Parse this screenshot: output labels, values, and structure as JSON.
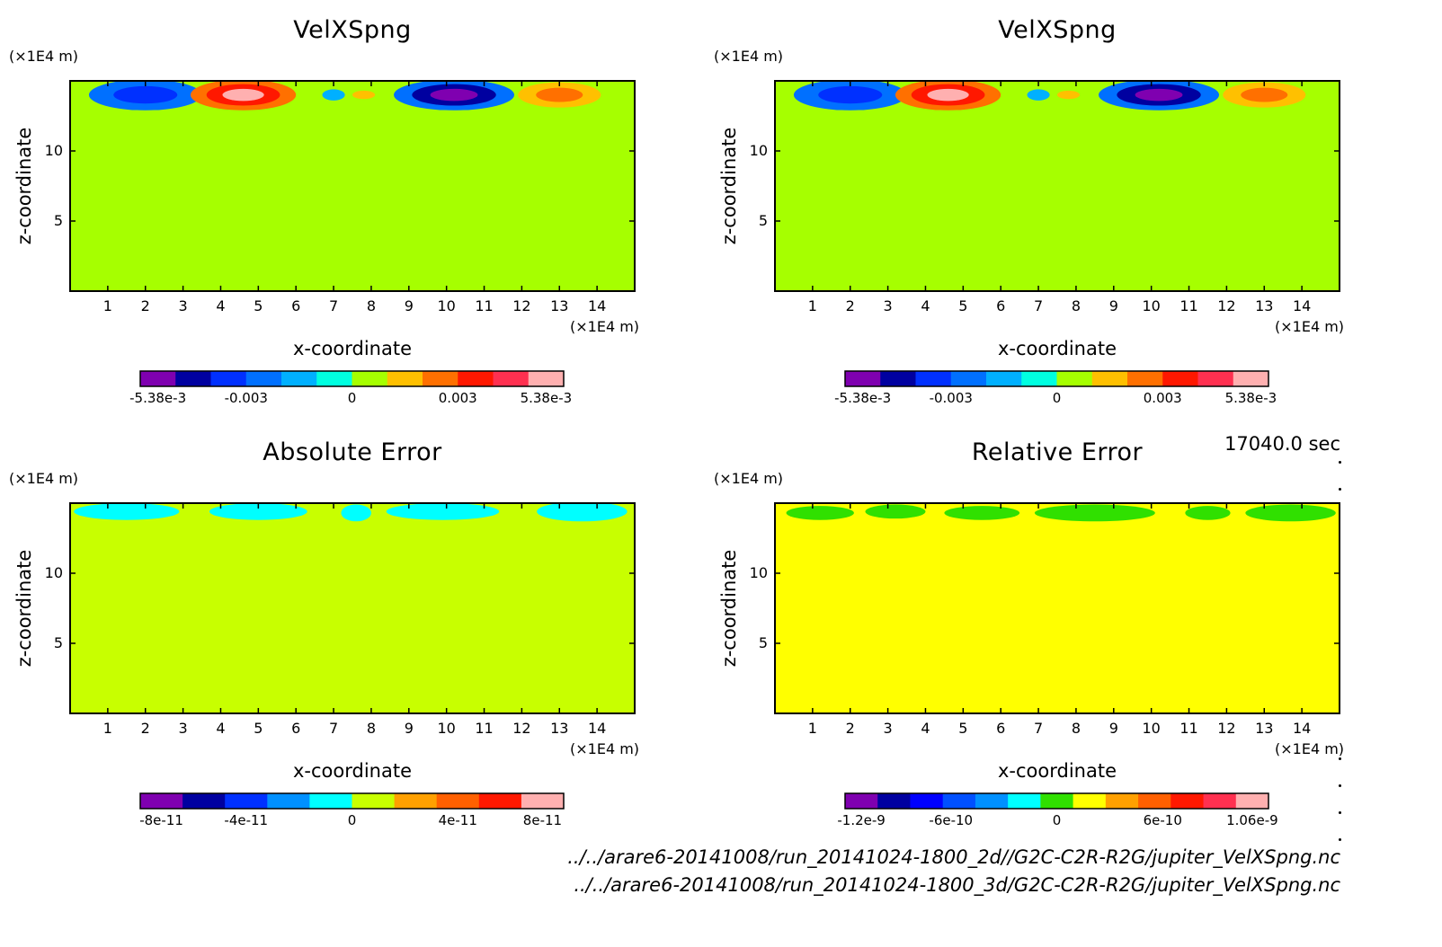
{
  "time_label": "17040.0 sec",
  "files": [
    "../../arare6-20141008/run_20141024-1800_2d//G2C-C2R-R2G/jupiter_VelXSpng.nc",
    "../../arare6-20141008/run_20141024-1800_3d/G2C-C2R-R2G/jupiter_VelXSpng.nc"
  ],
  "chart_data": [
    {
      "type": "heatmap",
      "title": "VelXSpng",
      "xlabel": "x-coordinate",
      "ylabel": "z-coordinate",
      "x_unit": "(×1E4 m)",
      "y_unit": "(×1E4 m)",
      "x_ticks": [
        "1",
        "2",
        "3",
        "4",
        "5",
        "6",
        "7",
        "8",
        "9",
        "10",
        "11",
        "12",
        "13",
        "14"
      ],
      "y_ticks": [
        "5",
        "10"
      ],
      "xlim": [
        0,
        15
      ],
      "ylim": [
        0,
        15
      ],
      "background_color": "#a6ff00",
      "colorbar": {
        "colors": [
          "#7f00b0",
          "#0000a0",
          "#0030ff",
          "#0070ff",
          "#00b0ff",
          "#00ffe0",
          "#a6ff00",
          "#ffc000",
          "#ff7000",
          "#ff1800",
          "#ff3050",
          "#ffb0b0"
        ],
        "labels": [
          "-5.38e-3",
          "-0.003",
          "0",
          "0.003",
          "5.38e-3"
        ]
      },
      "features": [
        {
          "x": 2.0,
          "z": 14.0,
          "wx": 1.5,
          "wz": 1.1,
          "colors": [
            "#0070ff",
            "#0030ff"
          ]
        },
        {
          "x": 4.6,
          "z": 14.0,
          "wx": 1.4,
          "wz": 1.1,
          "colors": [
            "#ff7000",
            "#ff1800",
            "#ffb0b0"
          ]
        },
        {
          "x": 7.0,
          "z": 14.0,
          "wx": 0.3,
          "wz": 0.4,
          "colors": [
            "#00b0ff"
          ]
        },
        {
          "x": 7.8,
          "z": 14.0,
          "wx": 0.3,
          "wz": 0.3,
          "colors": [
            "#ffc000"
          ]
        },
        {
          "x": 10.2,
          "z": 14.0,
          "wx": 1.6,
          "wz": 1.1,
          "colors": [
            "#0070ff",
            "#0000a0",
            "#7f00b0"
          ]
        },
        {
          "x": 13.0,
          "z": 14.0,
          "wx": 1.1,
          "wz": 0.9,
          "colors": [
            "#ffc000",
            "#ff7000"
          ]
        }
      ]
    },
    {
      "type": "heatmap",
      "title": "VelXSpng",
      "xlabel": "x-coordinate",
      "ylabel": "z-coordinate",
      "x_unit": "(×1E4 m)",
      "y_unit": "(×1E4 m)",
      "x_ticks": [
        "1",
        "2",
        "3",
        "4",
        "5",
        "6",
        "7",
        "8",
        "9",
        "10",
        "11",
        "12",
        "13",
        "14"
      ],
      "y_ticks": [
        "5",
        "10"
      ],
      "xlim": [
        0,
        15
      ],
      "ylim": [
        0,
        15
      ],
      "background_color": "#a6ff00",
      "colorbar": {
        "colors": [
          "#7f00b0",
          "#0000a0",
          "#0030ff",
          "#0070ff",
          "#00b0ff",
          "#00ffe0",
          "#a6ff00",
          "#ffc000",
          "#ff7000",
          "#ff1800",
          "#ff3050",
          "#ffb0b0"
        ],
        "labels": [
          "-5.38e-3",
          "-0.003",
          "0",
          "0.003",
          "5.38e-3"
        ]
      },
      "features": [
        {
          "x": 2.0,
          "z": 14.0,
          "wx": 1.5,
          "wz": 1.1,
          "colors": [
            "#0070ff",
            "#0030ff"
          ]
        },
        {
          "x": 4.6,
          "z": 14.0,
          "wx": 1.4,
          "wz": 1.1,
          "colors": [
            "#ff7000",
            "#ff1800",
            "#ffb0b0"
          ]
        },
        {
          "x": 7.0,
          "z": 14.0,
          "wx": 0.3,
          "wz": 0.4,
          "colors": [
            "#00b0ff"
          ]
        },
        {
          "x": 7.8,
          "z": 14.0,
          "wx": 0.3,
          "wz": 0.3,
          "colors": [
            "#ffc000"
          ]
        },
        {
          "x": 10.2,
          "z": 14.0,
          "wx": 1.6,
          "wz": 1.1,
          "colors": [
            "#0070ff",
            "#0000a0",
            "#7f00b0"
          ]
        },
        {
          "x": 13.0,
          "z": 14.0,
          "wx": 1.1,
          "wz": 0.9,
          "colors": [
            "#ffc000",
            "#ff7000"
          ]
        }
      ]
    },
    {
      "type": "heatmap",
      "title": "Absolute Error",
      "xlabel": "x-coordinate",
      "ylabel": "z-coordinate",
      "x_unit": "(×1E4 m)",
      "y_unit": "(×1E4 m)",
      "x_ticks": [
        "1",
        "2",
        "3",
        "4",
        "5",
        "6",
        "7",
        "8",
        "9",
        "10",
        "11",
        "12",
        "13",
        "14"
      ],
      "y_ticks": [
        "5",
        "10"
      ],
      "xlim": [
        0,
        15
      ],
      "ylim": [
        0,
        15
      ],
      "background_color": "#c8ff00",
      "colorbar": {
        "colors": [
          "#7f00b0",
          "#0000a0",
          "#0030ff",
          "#0090ff",
          "#00ffff",
          "#c8ff00",
          "#ffa000",
          "#ff6000",
          "#ff1800",
          "#ffb0b0"
        ],
        "labels": [
          "-8e-11",
          "-4e-11",
          "0",
          "4e-11",
          "8e-11"
        ]
      },
      "features": [
        {
          "x": 1.5,
          "z": 14.4,
          "wx": 1.4,
          "wz": 0.6,
          "colors": [
            "#00ffff"
          ]
        },
        {
          "x": 5.0,
          "z": 14.4,
          "wx": 1.3,
          "wz": 0.6,
          "colors": [
            "#00ffff"
          ]
        },
        {
          "x": 7.6,
          "z": 14.3,
          "wx": 0.4,
          "wz": 0.6,
          "colors": [
            "#00ffff"
          ]
        },
        {
          "x": 9.9,
          "z": 14.4,
          "wx": 1.5,
          "wz": 0.6,
          "colors": [
            "#00ffff"
          ]
        },
        {
          "x": 13.6,
          "z": 14.4,
          "wx": 1.2,
          "wz": 0.7,
          "colors": [
            "#00ffff"
          ]
        }
      ]
    },
    {
      "type": "heatmap",
      "title": "Relative Error",
      "xlabel": "x-coordinate",
      "ylabel": "z-coordinate",
      "x_unit": "(×1E4 m)",
      "y_unit": "(×1E4 m)",
      "x_ticks": [
        "1",
        "2",
        "3",
        "4",
        "5",
        "6",
        "7",
        "8",
        "9",
        "10",
        "11",
        "12",
        "13",
        "14"
      ],
      "y_ticks": [
        "5",
        "10"
      ],
      "xlim": [
        0,
        15
      ],
      "ylim": [
        0,
        15
      ],
      "background_color": "#ffff00",
      "colorbar": {
        "colors": [
          "#7f00b0",
          "#0000a0",
          "#0000ff",
          "#0050ff",
          "#0090ff",
          "#00ffff",
          "#30e000",
          "#ffff00",
          "#ffa000",
          "#ff6000",
          "#ff1800",
          "#ff3050",
          "#ffb0b0"
        ],
        "labels": [
          "-1.2e-9",
          "-6e-10",
          "0",
          "6e-10",
          "1.06e-9"
        ]
      },
      "features": [
        {
          "x": 1.2,
          "z": 14.3,
          "wx": 0.9,
          "wz": 0.5,
          "colors": [
            "#30e000"
          ]
        },
        {
          "x": 3.2,
          "z": 14.4,
          "wx": 0.8,
          "wz": 0.5,
          "colors": [
            "#30e000"
          ]
        },
        {
          "x": 5.5,
          "z": 14.3,
          "wx": 1.0,
          "wz": 0.5,
          "colors": [
            "#30e000"
          ]
        },
        {
          "x": 8.5,
          "z": 14.3,
          "wx": 1.6,
          "wz": 0.6,
          "colors": [
            "#30e000"
          ]
        },
        {
          "x": 11.5,
          "z": 14.3,
          "wx": 0.6,
          "wz": 0.5,
          "colors": [
            "#30e000"
          ]
        },
        {
          "x": 13.7,
          "z": 14.3,
          "wx": 1.2,
          "wz": 0.6,
          "colors": [
            "#30e000"
          ]
        }
      ]
    }
  ]
}
